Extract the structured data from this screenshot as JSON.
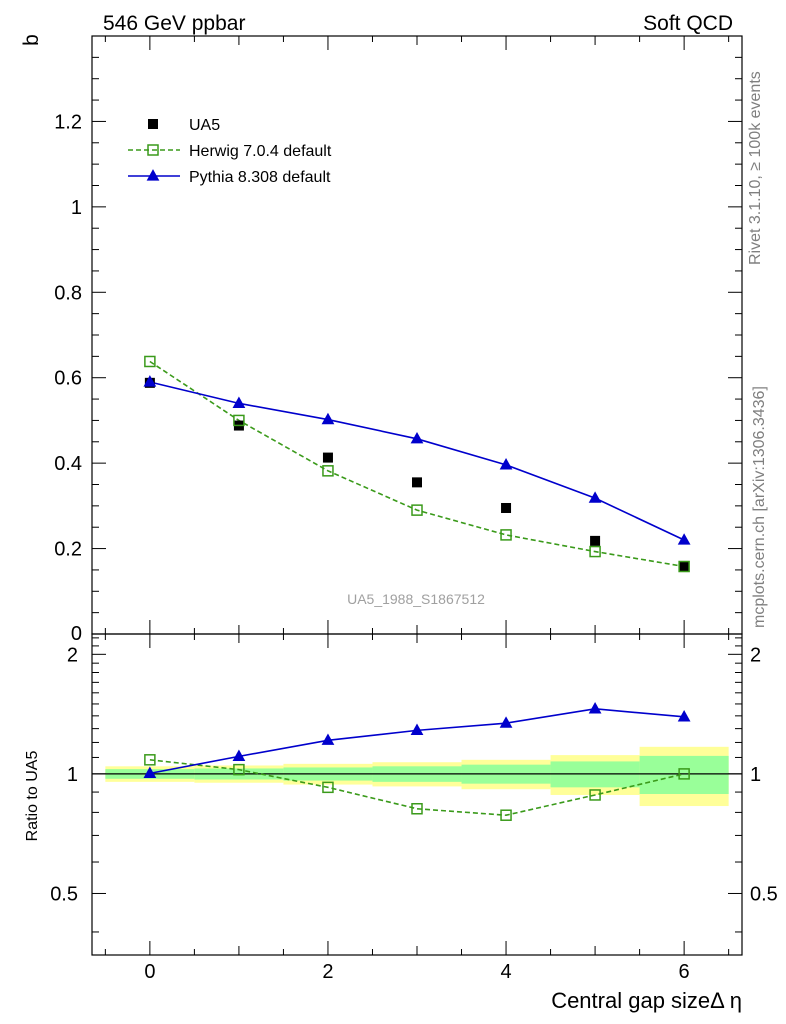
{
  "header": {
    "left_title": "546 GeV ppbar",
    "right_title": "Soft QCD"
  },
  "side_labels": {
    "rivet": "Rivet 3.1.10, ≥ 100k events",
    "mcplots": "mcplots.cern.ch [arXiv:1306.3436]"
  },
  "colors": {
    "data": "#000000",
    "herwig": "#3a9a1a",
    "pythia": "#0000cc",
    "band_outer": "#ffff99",
    "band_inner": "#99ff99"
  },
  "chart_data": [
    {
      "type": "scatter",
      "panel": "main",
      "ylabel": "b",
      "watermark": "UA5_1988_S1867512",
      "xlim": [
        -0.65,
        6.65
      ],
      "ylim": [
        0,
        1.4
      ],
      "yticks": [
        0,
        0.2,
        0.4,
        0.6,
        0.8,
        1,
        1.2
      ],
      "yticklabels": [
        "0",
        "0.2",
        "0.4",
        "0.6",
        "0.8",
        "1",
        "1.2"
      ],
      "legend_position": "top-left",
      "x": [
        0,
        1,
        2,
        3,
        4,
        5,
        6
      ],
      "series": [
        {
          "name": "UA5",
          "style": "square-filled",
          "values": [
            0.588,
            0.488,
            0.413,
            0.355,
            0.295,
            0.218,
            0.158
          ]
        },
        {
          "name": "Herwig 7.0.4 default",
          "style": "square-open-dashed",
          "values": [
            0.638,
            0.5,
            0.382,
            0.29,
            0.232,
            0.193,
            0.158
          ]
        },
        {
          "name": "Pythia 8.308 default",
          "style": "triangle-solid",
          "values": [
            0.59,
            0.54,
            0.502,
            0.457,
            0.396,
            0.318,
            0.22
          ]
        }
      ]
    },
    {
      "type": "line",
      "panel": "ratio",
      "ylabel": "Ratio to UA5",
      "xlabel": "Central gap sizeΔ η",
      "xlim": [
        -0.65,
        6.65
      ],
      "ylim": [
        0.35,
        2.25
      ],
      "xticks": [
        0,
        2,
        4,
        6
      ],
      "xticklabels": [
        "0",
        "2",
        "4",
        "6"
      ],
      "yticks": [
        0.5,
        1,
        2
      ],
      "yticklabels": [
        "0.5",
        "1",
        "2"
      ],
      "x": [
        0,
        1,
        2,
        3,
        4,
        5,
        6
      ],
      "reference_line": 1,
      "series": [
        {
          "name": "Herwig 7.0.4 default",
          "values": [
            1.085,
            1.025,
            0.925,
            0.817,
            0.787,
            0.885,
            1.0
          ]
        },
        {
          "name": "Pythia 8.308 default",
          "values": [
            1.003,
            1.107,
            1.215,
            1.287,
            1.342,
            1.458,
            1.392
          ]
        }
      ],
      "bands": {
        "inner_half": [
          0.028,
          0.032,
          0.038,
          0.045,
          0.055,
          0.075,
          0.11
        ],
        "outer_half": [
          0.045,
          0.05,
          0.06,
          0.07,
          0.085,
          0.115,
          0.17
        ]
      }
    }
  ]
}
